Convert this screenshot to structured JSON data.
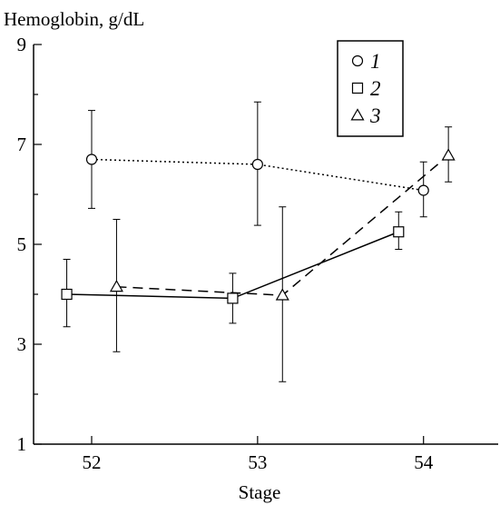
{
  "chart_data": {
    "type": "line",
    "ylabel": "Hemoglobin, g/dL",
    "xlabel": "Stage",
    "xlim": [
      51.65,
      54.45
    ],
    "ylim": [
      1,
      9
    ],
    "x_ticks": [
      52,
      53,
      54
    ],
    "y_ticks": [
      1,
      3,
      5,
      7,
      9
    ],
    "y_minor_ticks": [
      2,
      4,
      6,
      8
    ],
    "grid": false,
    "legend_position": "top-right",
    "series": [
      {
        "name": "1",
        "marker": "circle",
        "line_style": "dotted",
        "x": [
          52.0,
          53.0,
          54.0
        ],
        "y": [
          6.7,
          6.6,
          6.08
        ],
        "err_low": [
          5.72,
          5.38,
          5.55
        ],
        "err_high": [
          7.68,
          7.85,
          6.65
        ]
      },
      {
        "name": "2",
        "marker": "square",
        "line_style": "solid",
        "x": [
          51.85,
          52.85,
          53.85
        ],
        "y": [
          4.0,
          3.92,
          5.25
        ],
        "err_low": [
          3.35,
          3.42,
          4.9
        ],
        "err_high": [
          4.7,
          4.42,
          5.65
        ]
      },
      {
        "name": "3",
        "marker": "triangle",
        "line_style": "dashed",
        "x": [
          52.15,
          53.15,
          54.15
        ],
        "y": [
          4.15,
          3.98,
          6.78
        ],
        "err_low": [
          2.85,
          2.25,
          6.25
        ],
        "err_high": [
          5.5,
          5.75,
          7.35
        ]
      }
    ]
  }
}
